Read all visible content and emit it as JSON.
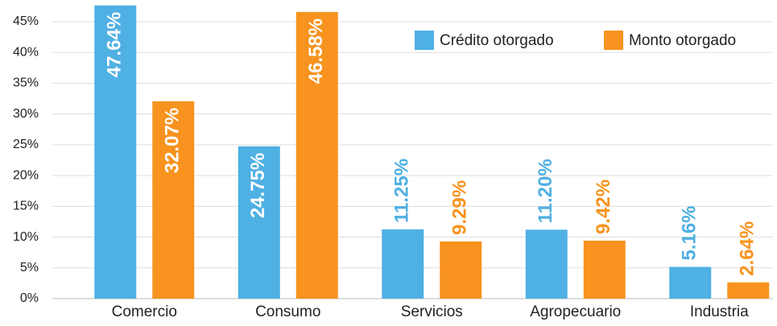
{
  "chart_data": {
    "type": "bar",
    "categories": [
      "Comercio",
      "Consumo",
      "Servicios",
      "Agropecuario",
      "Industria"
    ],
    "series": [
      {
        "name": "Crédito otorgado",
        "color": "#4fb0e3",
        "values": [
          47.64,
          24.75,
          11.25,
          11.2,
          5.16
        ],
        "value_labels": [
          "47.64%",
          "24.75%",
          "11.25%",
          "11.20%",
          "5.16%"
        ]
      },
      {
        "name": "Monto otorgado",
        "color": "#f7931e",
        "values": [
          32.07,
          46.58,
          9.29,
          9.42,
          2.64
        ],
        "value_labels": [
          "32.07%",
          "46.58%",
          "9.29%",
          "9.42%",
          "2.64%"
        ]
      }
    ],
    "ylim": [
      0,
      48
    ],
    "yticks": [
      {
        "value": 0,
        "label": "0%"
      },
      {
        "value": 5,
        "label": "5%"
      },
      {
        "value": 10,
        "label": "10%"
      },
      {
        "value": 15,
        "label": "15%"
      },
      {
        "value": 20,
        "label": "20%"
      },
      {
        "value": 25,
        "label": "25%"
      },
      {
        "value": 30,
        "label": "30%"
      },
      {
        "value": 35,
        "label": "35%"
      },
      {
        "value": 40,
        "label": "40%"
      },
      {
        "value": 45,
        "label": "45%"
      }
    ],
    "grid": true,
    "legend": "top-right"
  }
}
